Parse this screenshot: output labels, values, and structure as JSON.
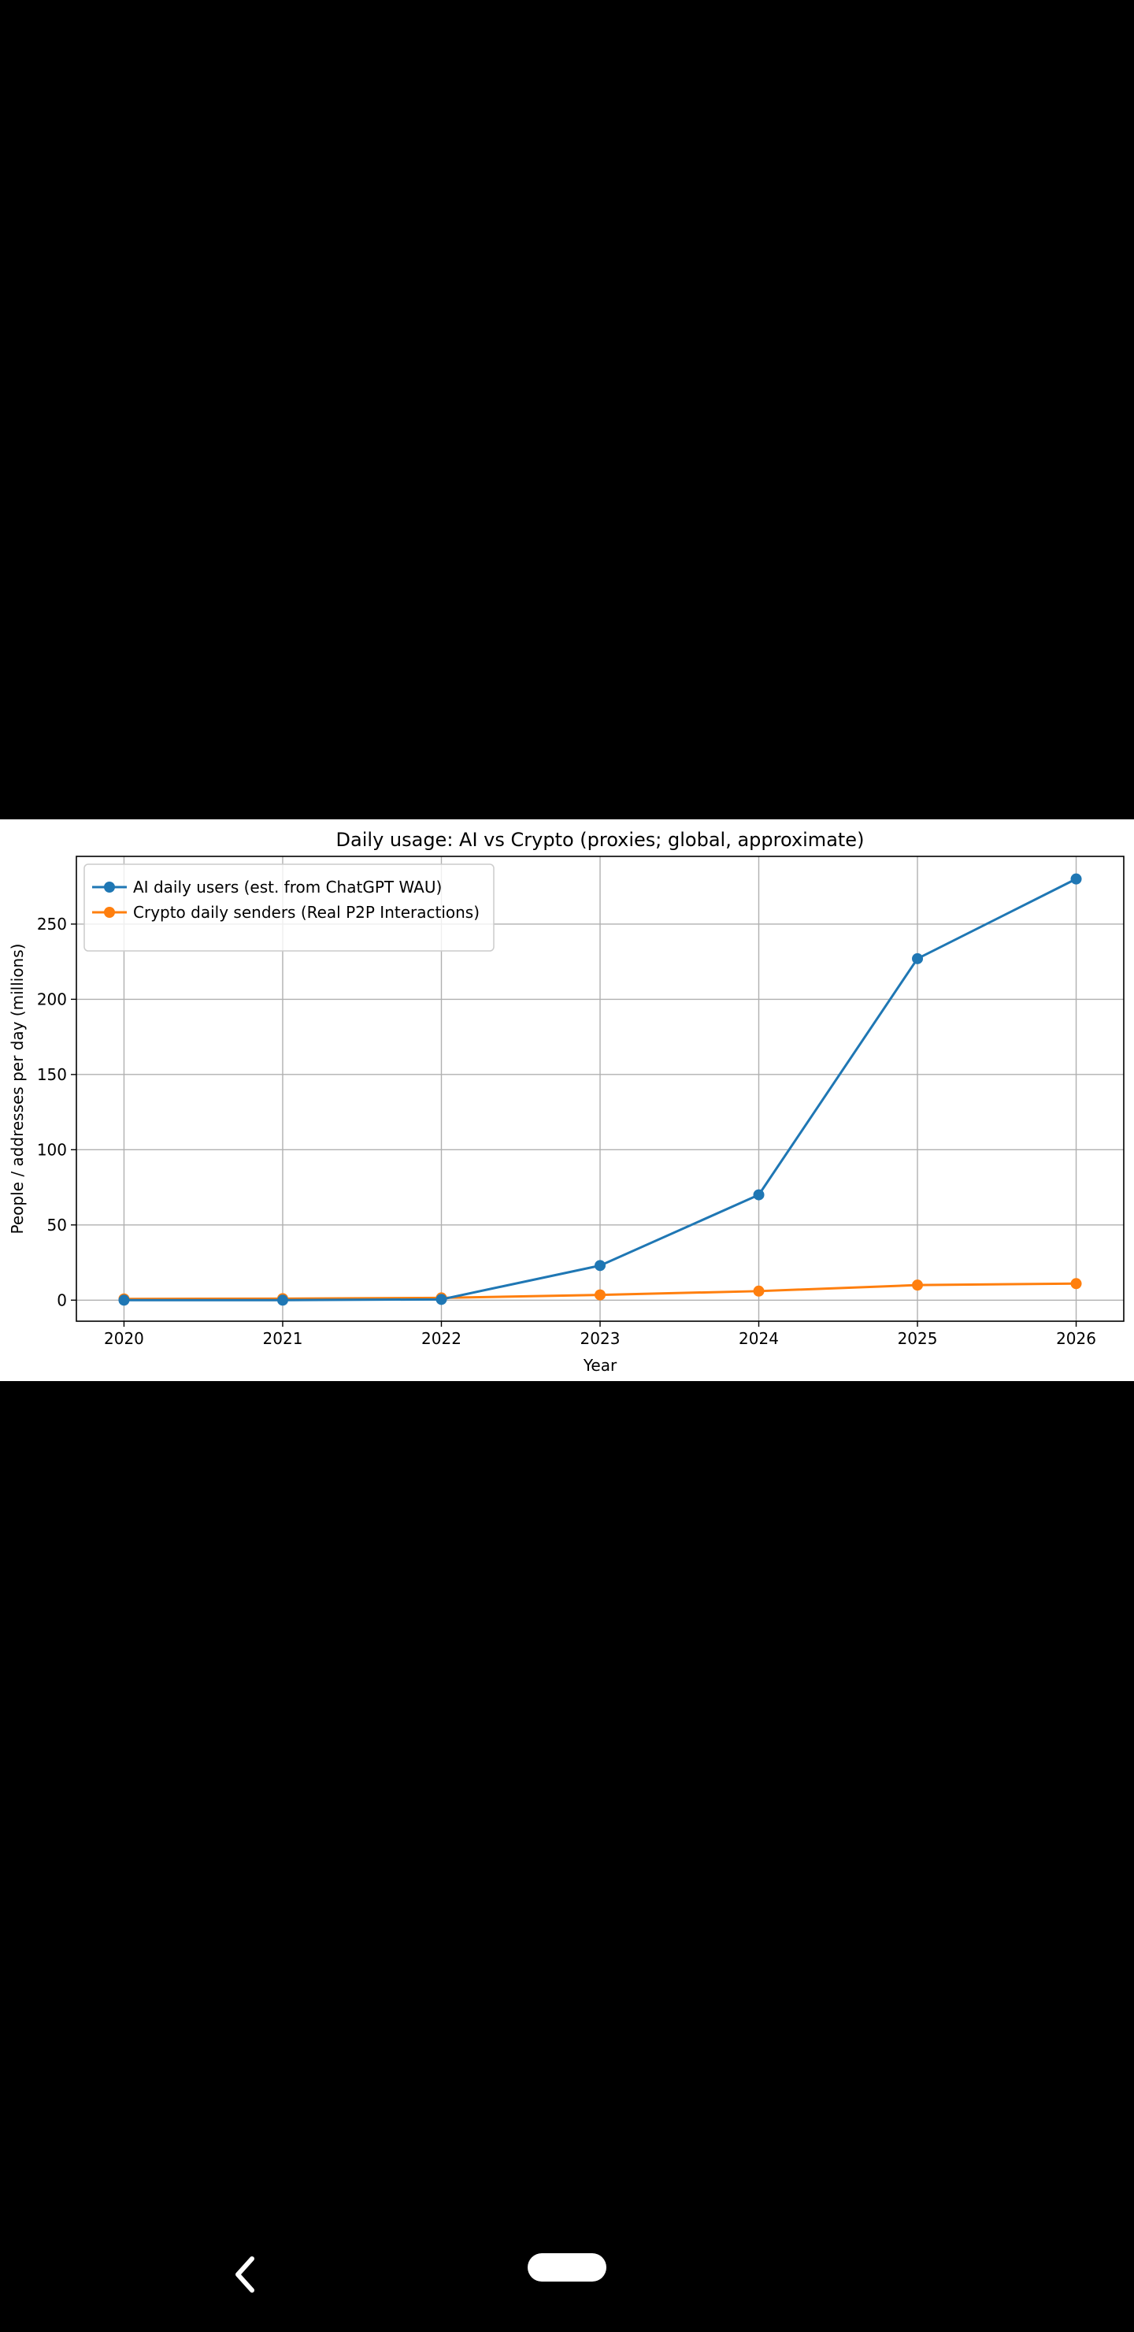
{
  "chart_data": {
    "type": "line",
    "title": "Daily usage: AI vs Crypto (proxies; global, approximate)",
    "xlabel": "Year",
    "ylabel": "People / addresses per day (millions)",
    "x": [
      2020,
      2021,
      2022,
      2023,
      2024,
      2025,
      2026
    ],
    "x_ticks": [
      "2020",
      "2021",
      "2022",
      "2023",
      "2024",
      "2025",
      "2026"
    ],
    "y_ticks": [
      "0",
      "50",
      "100",
      "150",
      "200",
      "250"
    ],
    "xlim": [
      2019.7,
      2026.3
    ],
    "ylim": [
      -14,
      295
    ],
    "grid": true,
    "legend": "top-left",
    "series": [
      {
        "name": "AI daily users (est. from ChatGPT WAU)",
        "color": "#1f77b4",
        "values": [
          0,
          0,
          0.5,
          23,
          70,
          227,
          280
        ]
      },
      {
        "name": "Crypto daily senders (Real P2P Interactions)",
        "color": "#ff7f0e",
        "values": [
          0.8,
          1,
          1.5,
          3.5,
          6,
          10,
          11
        ]
      }
    ]
  },
  "navigation": {
    "back_icon": "chevron-left-icon",
    "home_icon": "home-pill-icon"
  }
}
